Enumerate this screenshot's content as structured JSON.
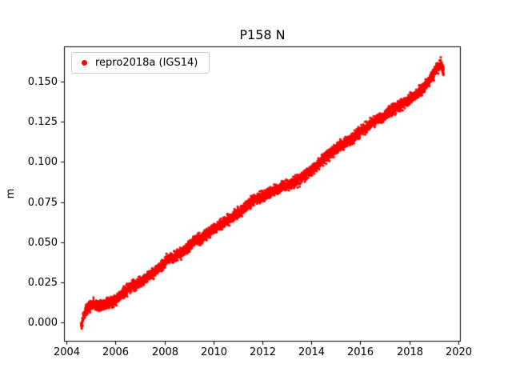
{
  "figure": {
    "title": "P158 N",
    "background_color": "#ffffff",
    "axes_color": "#000000"
  },
  "chart_data": {
    "type": "scatter",
    "title": "P158 N",
    "xlabel": "",
    "ylabel": "m",
    "grid": false,
    "xlim": [
      2003.9,
      2020.1
    ],
    "ylim": [
      -0.012,
      0.172
    ],
    "xticks": [
      2004,
      2006,
      2008,
      2010,
      2012,
      2014,
      2016,
      2018,
      2020
    ],
    "xtick_labels": [
      "2004",
      "2006",
      "2008",
      "2010",
      "2012",
      "2014",
      "2016",
      "2018",
      "2020"
    ],
    "yticks": [
      0.0,
      0.025,
      0.05,
      0.075,
      0.1,
      0.125,
      0.15
    ],
    "ytick_labels": [
      "0.000",
      "0.025",
      "0.050",
      "0.075",
      "0.100",
      "0.125",
      "0.150"
    ],
    "legend": {
      "position": "upper-left",
      "entries": [
        {
          "label": "repro2018a (IGS14)",
          "color": "#ff0000",
          "marker": "circle"
        }
      ]
    },
    "series": [
      {
        "name": "repro2018a (IGS14)",
        "color": "#ff0000",
        "marker": "circle",
        "marker_radius_px": 1.5,
        "noise_std_m": 0.0016,
        "sampling_step_years": 0.003,
        "x_start": 2004.6,
        "x_end": 2019.4,
        "trend_anchor_points": {
          "x": [
            2004.6,
            2004.75,
            2004.9,
            2005.1,
            2005.4,
            2005.7,
            2006.0,
            2006.3,
            2006.6,
            2006.9,
            2007.2,
            2007.5,
            2007.8,
            2008.1,
            2008.4,
            2008.7,
            2009.0,
            2009.2,
            2009.5,
            2009.8,
            2010.1,
            2010.4,
            2010.7,
            2011.0,
            2011.3,
            2011.6,
            2011.9,
            2012.2,
            2012.5,
            2012.8,
            2013.1,
            2013.4,
            2013.7,
            2014.0,
            2014.3,
            2014.6,
            2014.9,
            2015.2,
            2015.5,
            2015.8,
            2016.1,
            2016.4,
            2016.7,
            2017.0,
            2017.3,
            2017.6,
            2017.9,
            2018.2,
            2018.5,
            2018.8,
            2019.0,
            2019.15,
            2019.3,
            2019.4
          ],
          "y": [
            -0.002,
            0.006,
            0.01,
            0.011,
            0.01,
            0.012,
            0.014,
            0.018,
            0.022,
            0.024,
            0.027,
            0.03,
            0.034,
            0.039,
            0.041,
            0.043,
            0.047,
            0.051,
            0.052,
            0.056,
            0.059,
            0.062,
            0.065,
            0.068,
            0.072,
            0.076,
            0.078,
            0.08,
            0.082,
            0.085,
            0.086,
            0.088,
            0.091,
            0.095,
            0.099,
            0.103,
            0.107,
            0.11,
            0.113,
            0.116,
            0.12,
            0.124,
            0.126,
            0.129,
            0.132,
            0.135,
            0.138,
            0.141,
            0.145,
            0.15,
            0.155,
            0.159,
            0.161,
            0.156
          ]
        }
      }
    ]
  }
}
